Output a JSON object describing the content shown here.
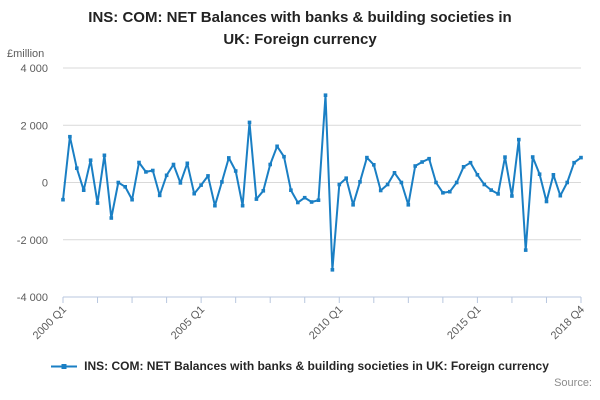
{
  "title": {
    "line1": "INS: COM: NET Balances with banks & building societies in",
    "line2": "UK: Foreign currency"
  },
  "legend": {
    "label": "INS: COM: NET Balances with banks & building societies in UK: Foreign currency"
  },
  "footer": {
    "source_label": "Source:"
  },
  "colors": {
    "line": "#1a7fc4",
    "grid": "#d9d9d9",
    "axis": "#b8c7df",
    "tick_text": "#5c5c5c",
    "title_text": "#222222",
    "source_text": "#8c8c8c"
  },
  "chart_data": {
    "type": "line",
    "title": "INS: COM: NET Balances with banks & building societies in UK: Foreign currency",
    "xlabel": "",
    "ylabel": "£million",
    "ylim": [
      -4000,
      4000
    ],
    "grid": true,
    "legend_position": "bottom",
    "yticks": [
      {
        "value": 4000,
        "label": "4 000"
      },
      {
        "value": 2000,
        "label": "2 000"
      },
      {
        "value": 0,
        "label": "0"
      },
      {
        "value": -2000,
        "label": "-2 000"
      },
      {
        "value": -4000,
        "label": "-4 000"
      }
    ],
    "xtick_every": 5,
    "xtick_labels": [
      {
        "index": 0,
        "label": "2000 Q1"
      },
      {
        "index": 20,
        "label": "2005 Q1"
      },
      {
        "index": 40,
        "label": "2010 Q1"
      },
      {
        "index": 60,
        "label": "2015 Q1"
      },
      {
        "index": 75,
        "label": "2018 Q4"
      }
    ],
    "categories": [
      "2000 Q1",
      "2000 Q2",
      "2000 Q3",
      "2000 Q4",
      "2001 Q1",
      "2001 Q2",
      "2001 Q3",
      "2001 Q4",
      "2002 Q1",
      "2002 Q2",
      "2002 Q3",
      "2002 Q4",
      "2003 Q1",
      "2003 Q2",
      "2003 Q3",
      "2003 Q4",
      "2004 Q1",
      "2004 Q2",
      "2004 Q3",
      "2004 Q4",
      "2005 Q1",
      "2005 Q2",
      "2005 Q3",
      "2005 Q4",
      "2006 Q1",
      "2006 Q2",
      "2006 Q3",
      "2006 Q4",
      "2007 Q1",
      "2007 Q2",
      "2007 Q3",
      "2007 Q4",
      "2008 Q1",
      "2008 Q2",
      "2008 Q3",
      "2008 Q4",
      "2009 Q1",
      "2009 Q2",
      "2009 Q3",
      "2009 Q4",
      "2010 Q1",
      "2010 Q2",
      "2010 Q3",
      "2010 Q4",
      "2011 Q1",
      "2011 Q2",
      "2011 Q3",
      "2011 Q4",
      "2012 Q1",
      "2012 Q2",
      "2012 Q3",
      "2012 Q4",
      "2013 Q1",
      "2013 Q2",
      "2013 Q3",
      "2013 Q4",
      "2014 Q1",
      "2014 Q2",
      "2014 Q3",
      "2014 Q4",
      "2015 Q1",
      "2015 Q2",
      "2015 Q3",
      "2015 Q4",
      "2016 Q1",
      "2016 Q2",
      "2016 Q3",
      "2016 Q4",
      "2017 Q1",
      "2017 Q2",
      "2017 Q3",
      "2017 Q4",
      "2018 Q1",
      "2018 Q2",
      "2018 Q3",
      "2018 Q4"
    ],
    "series": [
      {
        "name": "INS: COM: NET Balances with banks & building societies in UK: Foreign currency",
        "values": [
          -600,
          1600,
          500,
          -270,
          780,
          -720,
          950,
          -1240,
          0,
          -150,
          -600,
          700,
          370,
          420,
          -450,
          250,
          630,
          -15,
          670,
          -390,
          -90,
          230,
          -810,
          20,
          860,
          400,
          -810,
          2100,
          -580,
          -290,
          630,
          1265,
          900,
          -270,
          -700,
          -530,
          -680,
          -620,
          3050,
          -3050,
          -70,
          150,
          -780,
          25,
          870,
          620,
          -280,
          -70,
          340,
          0,
          -780,
          575,
          715,
          830,
          0,
          -360,
          -320,
          0,
          550,
          690,
          270,
          -70,
          -265,
          -400,
          886,
          -470,
          1500,
          -2360,
          890,
          290,
          -665,
          270,
          -460,
          0,
          690,
          870
        ]
      }
    ]
  }
}
